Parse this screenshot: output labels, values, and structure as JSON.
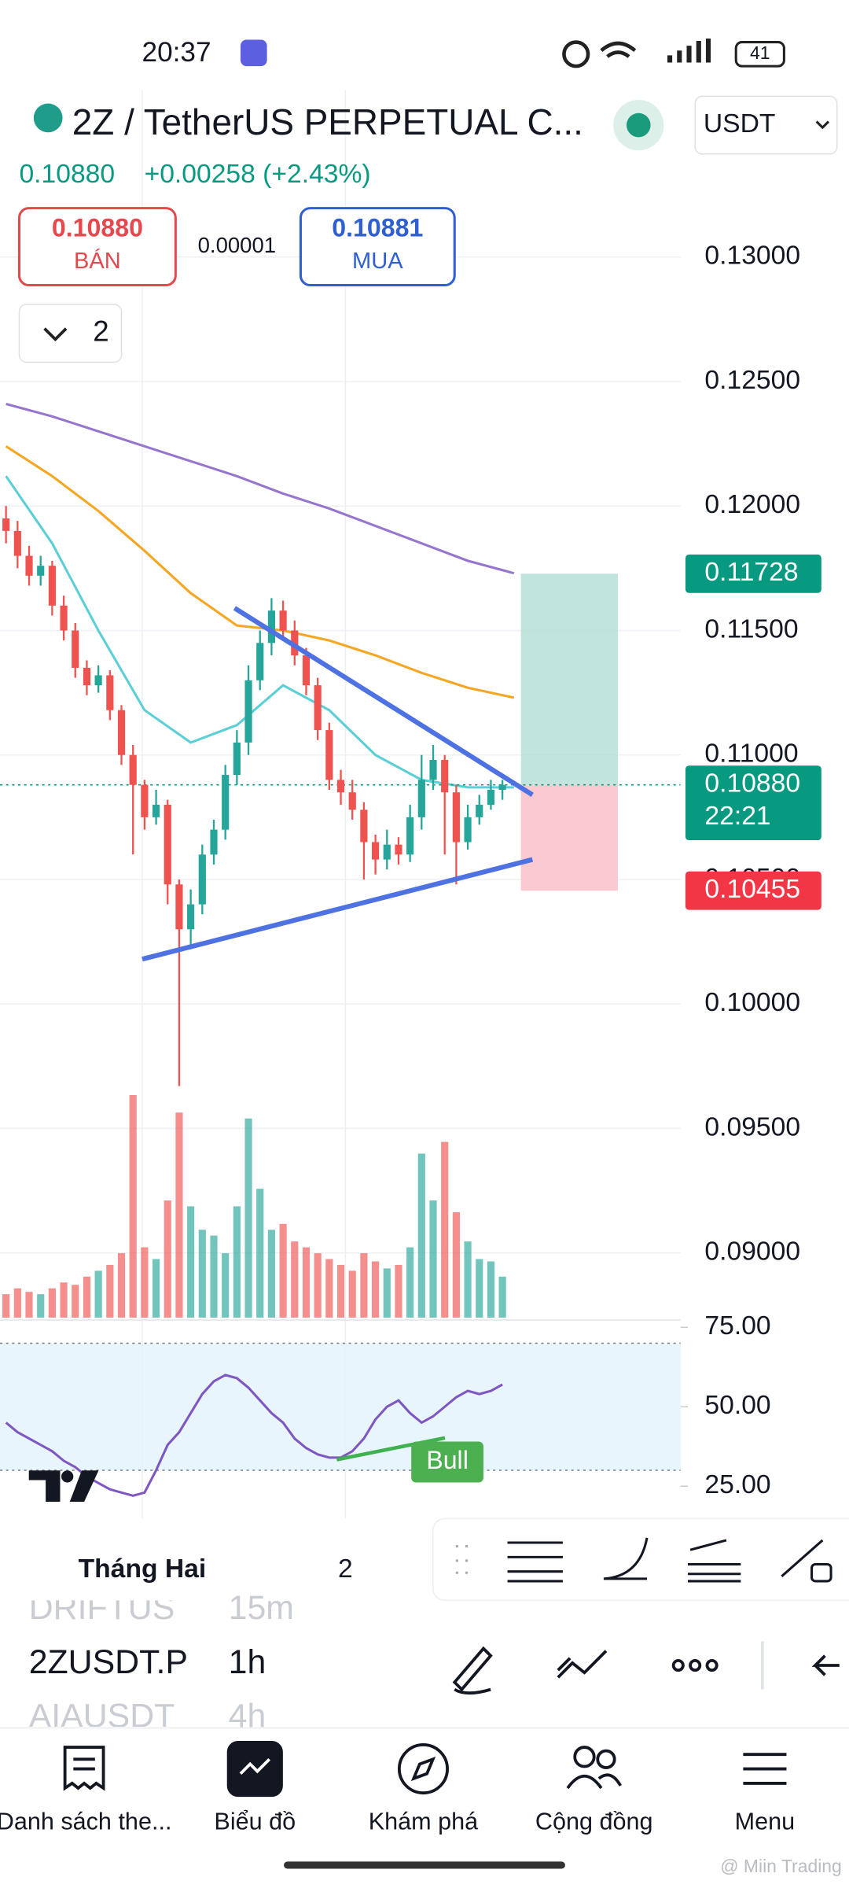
{
  "status_bar": {
    "time": "20:37",
    "battery": "41"
  },
  "header": {
    "symbol": "2Z / TetherUS PERPETUAL C...",
    "currency": "USDT"
  },
  "quote": {
    "last": "0.10880",
    "change": "+0.00258 (+2.43%)",
    "sell_price": "0.10880",
    "sell_label": "BÁN",
    "spread": "0.00001",
    "buy_price": "0.10881",
    "buy_label": "MUA",
    "collapse_count": "2"
  },
  "chart": {
    "type": "candlestick",
    "up_color": "#26a69a",
    "down_color": "#ef5350",
    "ylim": [
      0.0874,
      0.1367
    ],
    "yticks": [
      {
        "value": 0.13,
        "label": "0.13000"
      },
      {
        "value": 0.125,
        "label": "0.12500"
      },
      {
        "value": 0.12,
        "label": "0.12000"
      },
      {
        "value": 0.115,
        "label": "0.11500"
      },
      {
        "value": 0.11,
        "label": "0.11000"
      },
      {
        "value": 0.105,
        "label": "0.10500"
      },
      {
        "value": 0.1,
        "label": "0.10000"
      },
      {
        "value": 0.095,
        "label": "0.09500"
      },
      {
        "value": 0.09,
        "label": "0.09000"
      }
    ],
    "xticks": [
      {
        "value": 11.8,
        "label": "Tháng Hai"
      },
      {
        "value": 29.4,
        "label": "2"
      }
    ],
    "candles": [
      [
        0.1195,
        0.12,
        0.1185,
        0.119
      ],
      [
        0.119,
        0.1194,
        0.1175,
        0.118
      ],
      [
        0.118,
        0.1184,
        0.1168,
        0.1172
      ],
      [
        0.1172,
        0.118,
        0.1168,
        0.1176
      ],
      [
        0.1176,
        0.1178,
        0.1156,
        0.116
      ],
      [
        0.116,
        0.1164,
        0.1146,
        0.115
      ],
      [
        0.115,
        0.1153,
        0.1131,
        0.1135
      ],
      [
        0.1135,
        0.1138,
        0.1124,
        0.1128
      ],
      [
        0.1128,
        0.1136,
        0.1125,
        0.1132
      ],
      [
        0.1132,
        0.1134,
        0.1114,
        0.1118
      ],
      [
        0.1118,
        0.112,
        0.1096,
        0.11
      ],
      [
        0.11,
        0.1104,
        0.106,
        0.1088
      ],
      [
        0.1088,
        0.109,
        0.107,
        0.1075
      ],
      [
        0.1075,
        0.1086,
        0.1072,
        0.108
      ],
      [
        0.108,
        0.1082,
        0.104,
        0.1048
      ],
      [
        0.1048,
        0.105,
        0.0967,
        0.103
      ],
      [
        0.103,
        0.1046,
        0.1022,
        0.104
      ],
      [
        0.104,
        0.1064,
        0.1036,
        0.106
      ],
      [
        0.106,
        0.1074,
        0.1056,
        0.107
      ],
      [
        0.107,
        0.1096,
        0.1066,
        0.1092
      ],
      [
        0.1092,
        0.111,
        0.1088,
        0.1105
      ],
      [
        0.1105,
        0.1136,
        0.11,
        0.113
      ],
      [
        0.113,
        0.115,
        0.1126,
        0.1145
      ],
      [
        0.1145,
        0.1163,
        0.114,
        0.1158
      ],
      [
        0.1158,
        0.1162,
        0.1146,
        0.115
      ],
      [
        0.115,
        0.1154,
        0.1136,
        0.114
      ],
      [
        0.114,
        0.1143,
        0.1124,
        0.1128
      ],
      [
        0.1128,
        0.1131,
        0.1106,
        0.111
      ],
      [
        0.111,
        0.1113,
        0.1086,
        0.109
      ],
      [
        0.109,
        0.1094,
        0.108,
        0.1085
      ],
      [
        0.1085,
        0.109,
        0.1074,
        0.1078
      ],
      [
        0.1078,
        0.1081,
        0.105,
        0.1065
      ],
      [
        0.1065,
        0.1068,
        0.1052,
        0.1058
      ],
      [
        0.1058,
        0.107,
        0.1054,
        0.1064
      ],
      [
        0.1064,
        0.1067,
        0.1056,
        0.106
      ],
      [
        0.106,
        0.108,
        0.1057,
        0.1075
      ],
      [
        0.1075,
        0.11,
        0.107,
        0.109
      ],
      [
        0.109,
        0.1104,
        0.1086,
        0.1098
      ],
      [
        0.1098,
        0.11,
        0.106,
        0.1085
      ],
      [
        0.1085,
        0.1088,
        0.1048,
        0.1065
      ],
      [
        0.1065,
        0.108,
        0.1062,
        0.1075
      ],
      [
        0.1075,
        0.1084,
        0.1072,
        0.108
      ],
      [
        0.108,
        0.109,
        0.1078,
        0.1086
      ],
      [
        0.1086,
        0.109,
        0.1082,
        0.1088
      ]
    ],
    "volumes": [
      20,
      25,
      22,
      20,
      25,
      30,
      28,
      35,
      40,
      45,
      55,
      190,
      60,
      50,
      100,
      175,
      95,
      75,
      70,
      55,
      95,
      170,
      110,
      75,
      80,
      65,
      60,
      55,
      50,
      45,
      40,
      55,
      48,
      42,
      45,
      60,
      140,
      100,
      150,
      90,
      65,
      50,
      48,
      35
    ],
    "moving_averages": [
      {
        "color": "#9575cd",
        "x": [
          0,
          4,
          8,
          12,
          16,
          20,
          24,
          28,
          32,
          36,
          40,
          44
        ],
        "values": [
          0.1241,
          0.1236,
          0.123,
          0.1224,
          0.1218,
          0.1212,
          0.1205,
          0.1199,
          0.1192,
          0.1185,
          0.1178,
          0.1173
        ]
      },
      {
        "color": "#f5a623",
        "x": [
          0,
          4,
          8,
          12,
          16,
          20,
          24,
          28,
          32,
          36,
          40,
          44
        ],
        "values": [
          0.1224,
          0.1212,
          0.1198,
          0.1182,
          0.1165,
          0.1152,
          0.115,
          0.1146,
          0.114,
          0.1133,
          0.1127,
          0.1123
        ]
      },
      {
        "color": "#5ccfd6",
        "x": [
          0,
          4,
          8,
          12,
          16,
          20,
          24,
          28,
          32,
          36,
          40,
          44
        ],
        "values": [
          0.1212,
          0.1185,
          0.115,
          0.1118,
          0.1105,
          0.1112,
          0.1128,
          0.1118,
          0.11,
          0.109,
          0.1087,
          0.1087
        ]
      }
    ],
    "trendlines": [
      {
        "color": "#4f72e3",
        "points": [
          [
            19.8,
            0.1159
          ],
          [
            45.6,
            0.1084
          ]
        ]
      },
      {
        "color": "#4f72e3",
        "points": [
          [
            11.8,
            0.1018
          ],
          [
            45.6,
            0.1058
          ]
        ]
      }
    ],
    "position": {
      "x_range": [
        44.6,
        53
      ],
      "target": 0.11728,
      "entry": 0.1088,
      "stop": 0.10455,
      "target_label": "0.11728",
      "entry_label": "0.10880",
      "countdown": "22:21",
      "stop_label": "0.10455"
    },
    "rsi": {
      "ylim": [
        14.8,
        77.3
      ],
      "band": [
        30,
        70
      ],
      "color": "#7e57c2",
      "yticks": [
        {
          "value": 75,
          "label": "75.00"
        },
        {
          "value": 50,
          "label": "50.00"
        },
        {
          "value": 25,
          "label": "25.00"
        }
      ],
      "values": [
        45,
        42,
        40,
        38,
        36,
        33,
        31,
        28,
        26,
        24,
        23,
        22,
        23,
        30,
        38,
        42,
        48,
        54,
        58,
        60,
        59,
        56,
        52,
        48,
        45,
        40,
        37,
        35,
        34,
        34,
        36,
        40,
        46,
        50,
        52,
        48,
        45,
        47,
        50,
        53,
        55,
        54,
        55,
        57
      ],
      "divergence_label": "Bull"
    }
  },
  "symbol_list": [
    {
      "symbol": "DRIFTUS",
      "interval": "15m"
    },
    {
      "symbol": "2ZUSDT.P",
      "interval": "1h"
    },
    {
      "symbol": "AIAUSDT",
      "interval": "4h"
    }
  ],
  "nav": [
    "Danh sách the...",
    "Biểu đồ",
    "Khám phá",
    "Cộng đồng",
    "Menu"
  ],
  "watermark": "@ Miin Trading"
}
